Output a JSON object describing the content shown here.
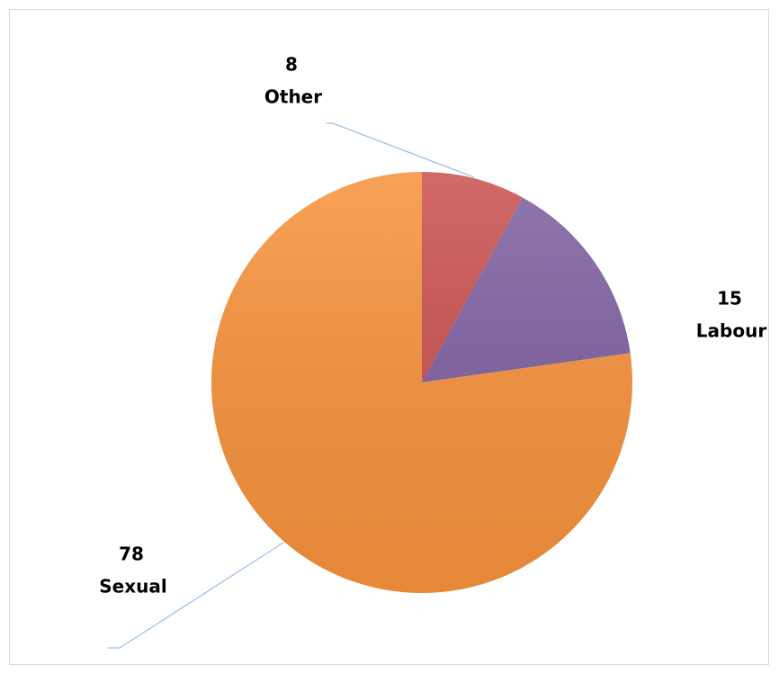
{
  "chart_data": {
    "type": "pie",
    "categories": [
      "Other",
      "Labour",
      "Sexual"
    ],
    "values": [
      8,
      15,
      78
    ],
    "colors": [
      "#c9504d",
      "#7f5fa0",
      "#f7923c"
    ]
  }
}
